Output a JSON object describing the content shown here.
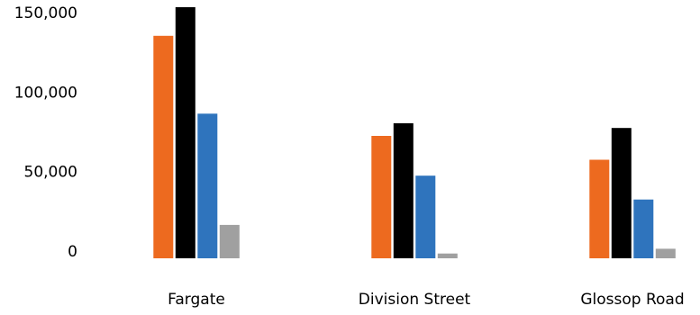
{
  "chart_data": {
    "type": "bar",
    "categories": [
      "Fargate",
      "Division Street",
      "Glossop Road"
    ],
    "series": [
      {
        "color": "#ed6a1f",
        "values": [
          140000,
          77000,
          62000
        ]
      },
      {
        "color": "#000000",
        "values": [
          158000,
          85000,
          82000
        ]
      },
      {
        "color": "#2f74bd",
        "values": [
          91000,
          52000,
          37000
        ]
      },
      {
        "color": "#a0a0a0",
        "values": [
          21000,
          3000,
          6000
        ]
      }
    ],
    "yticks": [
      "0",
      "50,000",
      "100,000",
      "150,000"
    ],
    "ytick_values": [
      0,
      50000,
      100000,
      150000
    ],
    "ylim": [
      0,
      158000
    ],
    "grid": false,
    "legend": "none"
  }
}
